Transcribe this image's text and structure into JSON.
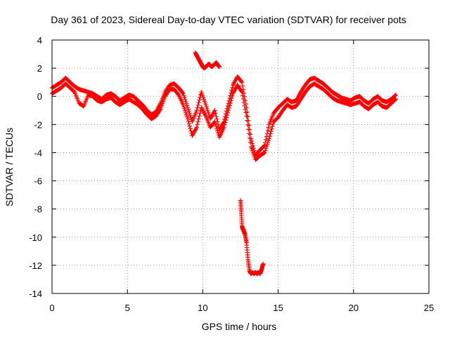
{
  "chart_data": {
    "type": "scatter",
    "title": "Day 361 of 2023, Sidereal Day-to-day VTEC variation (SDTVAR) for receiver pots",
    "xlabel": "GPS time / hours",
    "ylabel": "SDTVAR / TECUs",
    "xlim": [
      0,
      25
    ],
    "ylim": [
      -14,
      4
    ],
    "xticks": [
      0,
      5,
      10,
      15,
      20,
      25
    ],
    "xtick_labels": [
      "0",
      "5",
      "10",
      "15",
      "20",
      "25"
    ],
    "yticks": [
      -14,
      -12,
      -10,
      -8,
      -6,
      -4,
      -2,
      0,
      2,
      4
    ],
    "ytick_labels": [
      "-14",
      "-12",
      "-10",
      "-8",
      "-6",
      "-4",
      "-2",
      "0",
      "2",
      "4"
    ],
    "grid": true,
    "marker": "+",
    "color": "#ff0000",
    "series": [
      {
        "name": "main-trace-1",
        "x": [
          0.0,
          0.3,
          0.6,
          0.9,
          1.2,
          1.5,
          1.8,
          2.1,
          2.4,
          2.7,
          3.0,
          3.3,
          3.6,
          3.9,
          4.2,
          4.5,
          4.8,
          5.1,
          5.4,
          5.7,
          6.0,
          6.3,
          6.6,
          6.9,
          7.2,
          7.5,
          7.8,
          8.1,
          8.4,
          8.7,
          9.0,
          9.3,
          9.6,
          9.9,
          10.2,
          10.5,
          10.8,
          11.1,
          11.4,
          11.7,
          12.0,
          12.3,
          12.6,
          12.9,
          13.2,
          13.5,
          13.8,
          14.1,
          14.4,
          14.7,
          15.0,
          15.3,
          15.6,
          15.9,
          16.2,
          16.5,
          16.8,
          17.1,
          17.4,
          17.7,
          18.0,
          18.3,
          18.6,
          18.9,
          19.2,
          19.5,
          19.8,
          20.1,
          20.4,
          20.7,
          21.0,
          21.3,
          21.6,
          21.9,
          22.2,
          22.5,
          22.8
        ],
        "y": [
          0.6,
          0.8,
          1.0,
          1.3,
          1.0,
          0.7,
          0.5,
          0.4,
          0.3,
          0.2,
          0.0,
          -0.2,
          0.1,
          0.2,
          0.0,
          -0.3,
          -0.1,
          0.1,
          0.0,
          -0.3,
          -0.6,
          -1.0,
          -1.3,
          -1.1,
          -0.5,
          0.3,
          0.8,
          0.9,
          0.6,
          0.2,
          -0.8,
          -1.8,
          -1.0,
          0.3,
          -0.6,
          -1.6,
          -1.0,
          -2.4,
          -1.8,
          -0.5,
          0.8,
          1.4,
          1.0,
          -0.8,
          -3.0,
          -4.2,
          -3.8,
          -3.5,
          -2.0,
          -1.2,
          -0.8,
          -0.5,
          -0.2,
          -0.4,
          -0.3,
          0.3,
          0.8,
          1.2,
          1.3,
          1.1,
          0.9,
          0.6,
          0.3,
          0.1,
          -0.1,
          -0.2,
          -0.3,
          -0.1,
          0.0,
          -0.3,
          -0.5,
          -0.2,
          0.0,
          -0.3,
          -0.4,
          -0.2,
          0.1
        ]
      },
      {
        "name": "main-trace-2",
        "x": [
          0.0,
          0.3,
          0.6,
          0.9,
          1.2,
          1.5,
          1.8,
          2.1,
          2.4,
          2.7,
          3.0,
          3.3,
          3.6,
          3.9,
          4.2,
          4.5,
          4.8,
          5.1,
          5.4,
          5.7,
          6.0,
          6.3,
          6.6,
          6.9,
          7.2,
          7.5,
          7.8,
          8.1,
          8.4,
          8.7,
          9.0,
          9.3,
          9.6,
          9.9,
          10.2,
          10.5,
          10.8,
          11.1,
          11.4,
          11.7,
          12.0,
          12.3,
          12.6,
          12.9,
          13.2,
          13.5,
          13.8,
          14.1,
          14.4,
          14.7,
          15.0,
          15.3,
          15.6,
          15.9,
          16.2,
          16.5,
          16.8,
          17.1,
          17.4,
          17.7,
          18.0,
          18.3,
          18.6,
          18.9,
          19.2,
          19.5,
          19.8,
          20.1,
          20.4,
          20.7,
          21.0,
          21.3,
          21.6,
          21.9,
          22.2,
          22.5,
          22.8
        ],
        "y": [
          0.2,
          0.4,
          0.6,
          0.9,
          0.6,
          0.3,
          -0.5,
          -0.7,
          0.1,
          0.0,
          -0.3,
          -0.4,
          -0.2,
          -0.1,
          -0.4,
          -0.6,
          -0.4,
          -0.2,
          -0.4,
          -0.6,
          -0.9,
          -1.3,
          -1.6,
          -1.4,
          -0.9,
          0.0,
          0.5,
          0.5,
          0.1,
          -0.6,
          -1.6,
          -2.8,
          -2.2,
          -0.8,
          -1.4,
          -2.2,
          -1.8,
          -2.9,
          -2.2,
          -1.0,
          0.2,
          0.8,
          0.3,
          -1.4,
          -3.6,
          -4.5,
          -4.2,
          -4.0,
          -3.0,
          -1.8,
          -1.5,
          -1.0,
          -0.6,
          -0.8,
          -0.7,
          -0.2,
          0.3,
          0.7,
          0.9,
          0.7,
          0.5,
          0.2,
          -0.1,
          -0.3,
          -0.4,
          -0.5,
          -0.6,
          -0.5,
          -0.4,
          -0.7,
          -0.9,
          -0.6,
          -0.4,
          -0.7,
          -0.8,
          -0.5,
          -0.2
        ]
      },
      {
        "name": "upper-segment",
        "x": [
          9.5,
          9.6,
          9.7,
          9.8,
          9.9,
          10.0,
          10.1,
          10.2,
          10.3,
          10.4,
          10.5,
          10.6,
          10.7,
          10.8,
          10.9,
          11.0,
          11.1
        ],
        "y": [
          3.1,
          2.9,
          2.7,
          2.5,
          2.3,
          2.1,
          2.0,
          2.1,
          2.2,
          2.3,
          2.2,
          2.1,
          2.2,
          2.3,
          2.4,
          2.2,
          2.1
        ]
      },
      {
        "name": "lower-segment",
        "x": [
          12.5,
          12.55,
          12.6,
          12.65,
          12.7,
          12.8,
          12.9,
          13.0,
          13.1,
          13.2,
          13.3,
          13.4,
          13.5,
          13.6,
          13.7,
          13.8,
          13.9,
          14.0
        ],
        "y": [
          -7.4,
          -8.2,
          -9.2,
          -9.4,
          -9.5,
          -9.8,
          -10.4,
          -11.6,
          -12.4,
          -12.6,
          -12.5,
          -12.6,
          -12.5,
          -12.6,
          -12.5,
          -12.6,
          -12.3,
          -11.9
        ]
      }
    ]
  }
}
